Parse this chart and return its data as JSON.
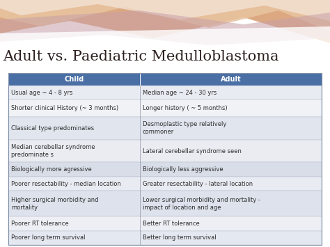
{
  "title": "Adult vs. Paediatric Medulloblastoma",
  "title_fontsize": 15,
  "title_color": "#2d2020",
  "header": [
    "Child",
    "Adult"
  ],
  "header_bg": "#4a6fa5",
  "header_text_color": "#ffffff",
  "rows": [
    [
      "Usual age ~ 4 - 8 yrs",
      "Median age ~ 24 - 30 yrs"
    ],
    [
      "Shorter clinical History (~ 3 months)",
      "Longer history ( ~ 5 months)"
    ],
    [
      "Classical type predominates",
      "Desmoplastic type relatively\ncommoner"
    ],
    [
      "Median cerebellar syndrome\npredominate s",
      "Lateral cerebellar syndrome seen"
    ],
    [
      "Biologically more agressive",
      "Biologically less aggressive"
    ],
    [
      "Poorer resectability - median location",
      "Greater resectability - lateral location"
    ],
    [
      "Higher surgical morbidity and\nmortality",
      "Lower surgical morbidity and mortality -\nimpact of location and age"
    ],
    [
      "Poorer RT tolerance",
      "Better RT tolerance"
    ],
    [
      "Poorer long term survival",
      "Better long term survival"
    ]
  ],
  "row_colors": [
    "#e8ecf2",
    "#f0f2f6",
    "#e0e5ee",
    "#eaecf2",
    "#d8dde8",
    "#e8ecf2",
    "#dde2ec",
    "#eeeff4",
    "#e4e8f0"
  ],
  "cell_text_color": "#2d2d2d",
  "background_color": "#ffffff"
}
